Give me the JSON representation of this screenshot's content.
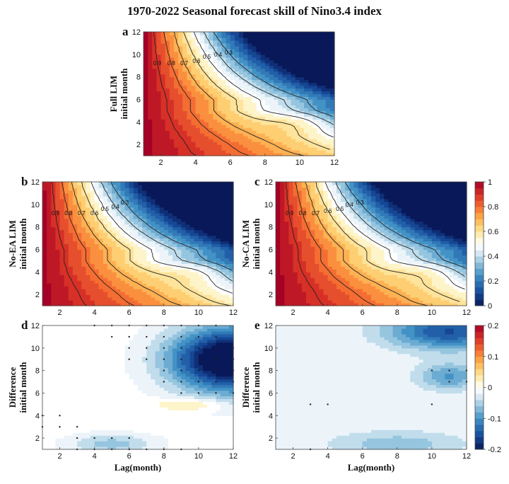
{
  "figure": {
    "title": "1970-2022 Seasonal forecast skill of Nino3.4 index"
  },
  "chart_data": [
    {
      "type": "heatmap",
      "panel": "a",
      "ylabel": [
        "Full LIM",
        "initial month"
      ],
      "xlabel": "",
      "x": [
        1,
        2,
        3,
        4,
        5,
        6,
        7,
        8,
        9,
        10,
        11,
        12
      ],
      "y": [
        1,
        2,
        3,
        4,
        5,
        6,
        7,
        8,
        9,
        10,
        11,
        12
      ],
      "xlim": [
        1,
        12
      ],
      "ylim": [
        1,
        12
      ],
      "xticks": [
        2,
        4,
        6,
        8,
        10,
        12
      ],
      "yticks": [
        2,
        4,
        6,
        8,
        10,
        12
      ],
      "field": "skill",
      "offset": 0.0,
      "contour_labels": [
        "0.3",
        "0.4",
        "0.5",
        "0.6",
        "0.7",
        "0.8",
        "0.9"
      ],
      "colorbar": null
    },
    {
      "type": "heatmap",
      "panel": "b",
      "ylabel": [
        "No-EA LIM",
        "initial month"
      ],
      "xlabel": "",
      "x": [
        1,
        2,
        3,
        4,
        5,
        6,
        7,
        8,
        9,
        10,
        11,
        12
      ],
      "y": [
        1,
        2,
        3,
        4,
        5,
        6,
        7,
        8,
        9,
        10,
        11,
        12
      ],
      "xlim": [
        1,
        12
      ],
      "ylim": [
        1,
        12
      ],
      "xticks": [
        2,
        4,
        6,
        8,
        10,
        12
      ],
      "yticks": [
        2,
        4,
        6,
        8,
        10,
        12
      ],
      "field": "skill",
      "offset": -0.05,
      "contour_labels": [
        "0.3",
        "0.4",
        "0.5",
        "0.6",
        "0.7",
        "0.8",
        "0.9"
      ],
      "colorbar": null
    },
    {
      "type": "heatmap",
      "panel": "c",
      "ylabel": [
        "No-CA LIM",
        "initial month"
      ],
      "xlabel": "",
      "x": [
        1,
        2,
        3,
        4,
        5,
        6,
        7,
        8,
        9,
        10,
        11,
        12
      ],
      "y": [
        1,
        2,
        3,
        4,
        5,
        6,
        7,
        8,
        9,
        10,
        11,
        12
      ],
      "xlim": [
        1,
        12
      ],
      "ylim": [
        1,
        12
      ],
      "xticks": [
        2,
        4,
        6,
        8,
        10,
        12
      ],
      "yticks": [
        2,
        4,
        6,
        8,
        10,
        12
      ],
      "field": "skill",
      "offset": -0.02,
      "contour_labels": [
        "0.3",
        "0.4",
        "0.5",
        "0.6",
        "0.7",
        "0.8",
        "0.9"
      ],
      "colorbar": {
        "min": 0,
        "max": 1,
        "ticks": [
          "0",
          "0.2",
          "0.4",
          "0.6",
          "0.8",
          "1"
        ]
      }
    },
    {
      "type": "heatmap",
      "panel": "d",
      "ylabel": [
        "Difference",
        "initial month"
      ],
      "xlabel": "Lag(month)",
      "x": [
        1,
        2,
        3,
        4,
        5,
        6,
        7,
        8,
        9,
        10,
        11,
        12
      ],
      "y": [
        1,
        2,
        3,
        4,
        5,
        6,
        7,
        8,
        9,
        10,
        11,
        12
      ],
      "xlim": [
        1,
        12
      ],
      "ylim": [
        1,
        12
      ],
      "xticks": [
        2,
        4,
        6,
        8,
        10,
        12
      ],
      "yticks": [
        2,
        4,
        6,
        8,
        10,
        12
      ],
      "field": "diff_ea",
      "significance_points": [
        [
          4,
          12
        ],
        [
          5,
          11
        ],
        [
          5,
          12
        ],
        [
          6,
          9
        ],
        [
          6,
          10
        ],
        [
          6,
          11
        ],
        [
          6,
          12
        ],
        [
          7,
          9
        ],
        [
          7,
          10
        ],
        [
          7,
          11
        ],
        [
          7,
          12
        ],
        [
          8,
          7
        ],
        [
          8,
          8
        ],
        [
          8,
          9
        ],
        [
          8,
          10
        ],
        [
          8,
          11
        ],
        [
          8,
          12
        ],
        [
          9,
          6
        ],
        [
          9,
          7
        ],
        [
          9,
          8
        ],
        [
          9,
          9
        ],
        [
          9,
          10
        ],
        [
          9,
          11
        ],
        [
          9,
          12
        ],
        [
          10,
          6
        ],
        [
          10,
          7
        ],
        [
          10,
          8
        ],
        [
          10,
          9
        ],
        [
          10,
          10
        ],
        [
          10,
          11
        ],
        [
          10,
          12
        ],
        [
          11,
          6
        ],
        [
          11,
          7
        ],
        [
          11,
          8
        ],
        [
          11,
          9
        ],
        [
          11,
          10
        ],
        [
          11,
          11
        ],
        [
          11,
          12
        ],
        [
          12,
          6
        ],
        [
          12,
          7
        ],
        [
          12,
          8
        ],
        [
          12,
          9
        ],
        [
          12,
          10
        ],
        [
          1,
          3
        ],
        [
          1,
          4
        ],
        [
          2,
          3
        ],
        [
          2,
          4
        ],
        [
          3,
          1
        ],
        [
          3,
          2
        ],
        [
          3,
          3
        ],
        [
          4,
          1
        ],
        [
          4,
          2
        ],
        [
          5,
          1
        ],
        [
          5,
          2
        ],
        [
          6,
          1
        ],
        [
          6,
          2
        ],
        [
          7,
          1
        ],
        [
          8,
          1
        ],
        [
          9,
          1
        ]
      ],
      "colorbar": null
    },
    {
      "type": "heatmap",
      "panel": "e",
      "ylabel": [
        "Difference",
        "initial month"
      ],
      "xlabel": "Lag(month)",
      "x": [
        1,
        2,
        3,
        4,
        5,
        6,
        7,
        8,
        9,
        10,
        11,
        12
      ],
      "y": [
        1,
        2,
        3,
        4,
        5,
        6,
        7,
        8,
        9,
        10,
        11,
        12
      ],
      "xlim": [
        1,
        12
      ],
      "ylim": [
        1,
        12
      ],
      "xticks": [
        2,
        4,
        6,
        8,
        10,
        12
      ],
      "yticks": [
        2,
        4,
        6,
        8,
        10,
        12
      ],
      "field": "diff_ca",
      "significance_points": [
        [
          3,
          5
        ],
        [
          4,
          5
        ],
        [
          3,
          1
        ],
        [
          10,
          5
        ],
        [
          10,
          8
        ],
        [
          11,
          7
        ],
        [
          11,
          8
        ],
        [
          12,
          7
        ],
        [
          12,
          8
        ]
      ],
      "colorbar": {
        "min": -0.2,
        "max": 0.2,
        "ticks": [
          "-0.2",
          "-0.1",
          "0",
          "0.1",
          "0.2"
        ]
      }
    }
  ]
}
